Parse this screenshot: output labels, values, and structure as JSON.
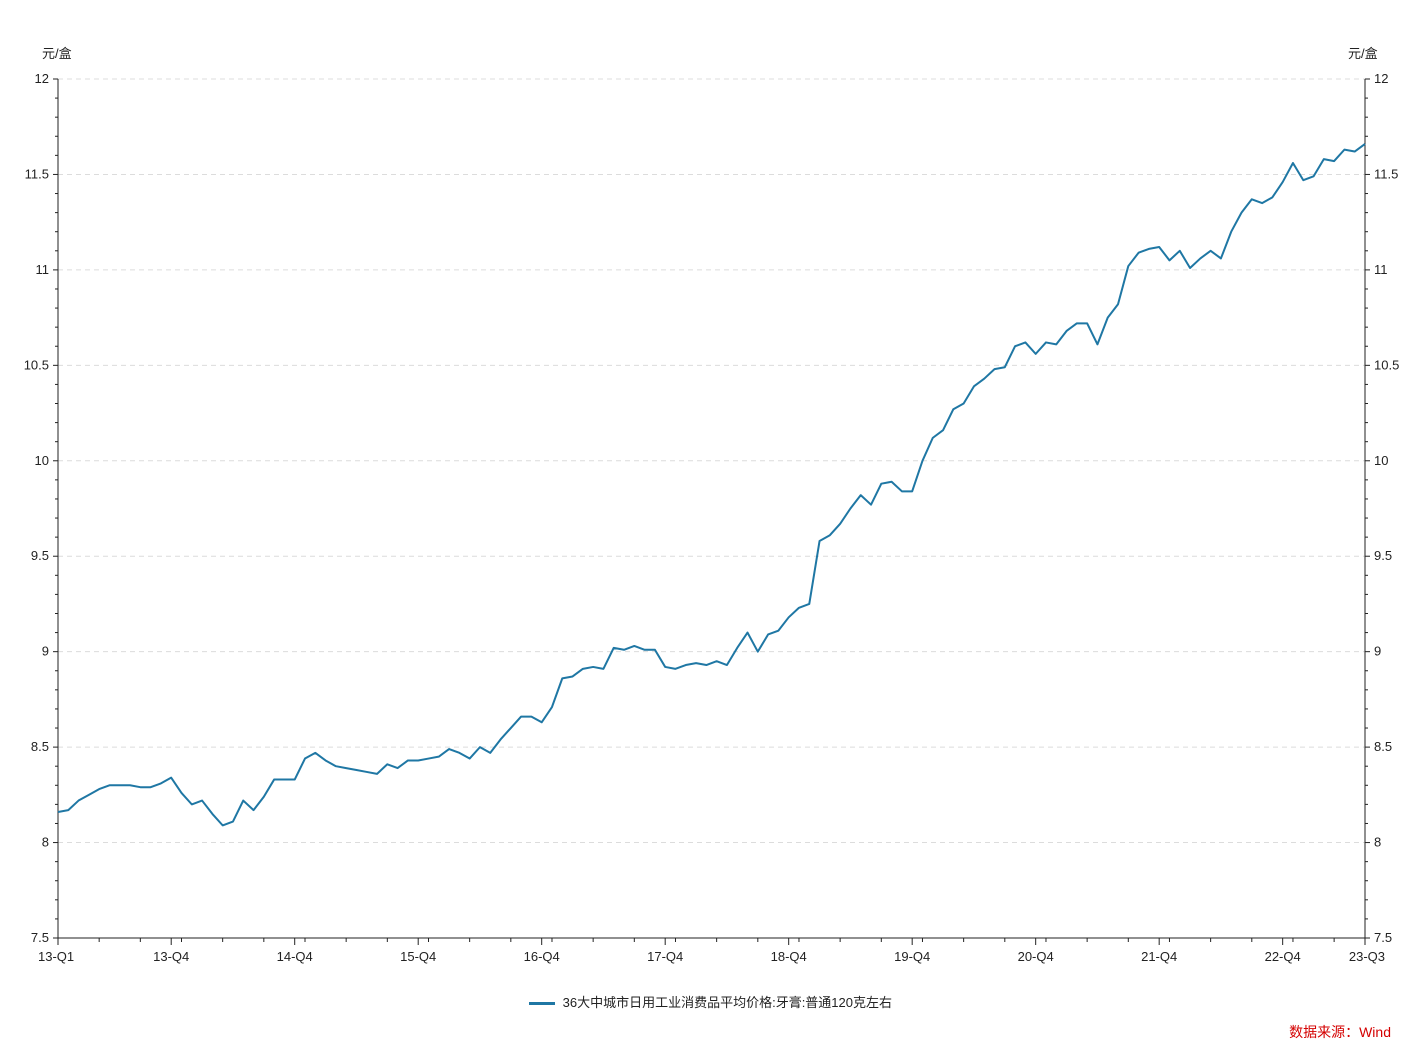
{
  "chart_data": {
    "type": "line",
    "left_unit": "元/盒",
    "right_unit": "元/盒",
    "ylim": [
      7.5,
      12
    ],
    "yticks": [
      "7.5",
      "8",
      "8.5",
      "9",
      "9.5",
      "10",
      "10.5",
      "11",
      "11.5",
      "12"
    ],
    "xtick_labels": [
      {
        "label": "13-Q1",
        "index": 0
      },
      {
        "label": "13-Q4",
        "index": 11
      },
      {
        "label": "14-Q4",
        "index": 23
      },
      {
        "label": "15-Q4",
        "index": 35
      },
      {
        "label": "16-Q4",
        "index": 47
      },
      {
        "label": "17-Q4",
        "index": 59
      },
      {
        "label": "18-Q4",
        "index": 71
      },
      {
        "label": "19-Q4",
        "index": 83
      },
      {
        "label": "20-Q4",
        "index": 95
      },
      {
        "label": "21-Q4",
        "index": 107
      },
      {
        "label": "22-Q4",
        "index": 119
      },
      {
        "label": "23-Q3",
        "index": 127
      }
    ],
    "grid": true,
    "legend_placement": "bottom-center",
    "series": [
      {
        "name": "36大中城市日用工业消费品平均价格:牙膏:普通120克左右",
        "color": "#1f77a4",
        "values": [
          8.16,
          8.17,
          8.22,
          8.25,
          8.28,
          8.3,
          8.3,
          8.3,
          8.29,
          8.29,
          8.31,
          8.34,
          8.26,
          8.2,
          8.22,
          8.15,
          8.09,
          8.11,
          8.22,
          8.17,
          8.24,
          8.33,
          8.33,
          8.33,
          8.44,
          8.47,
          8.43,
          8.4,
          8.39,
          8.38,
          8.37,
          8.36,
          8.41,
          8.39,
          8.43,
          8.43,
          8.44,
          8.45,
          8.49,
          8.47,
          8.44,
          8.5,
          8.47,
          8.54,
          8.6,
          8.66,
          8.66,
          8.63,
          8.71,
          8.86,
          8.87,
          8.91,
          8.92,
          8.91,
          9.02,
          9.01,
          9.03,
          9.01,
          9.01,
          8.92,
          8.91,
          8.93,
          8.94,
          8.93,
          8.95,
          8.93,
          9.02,
          9.1,
          9.0,
          9.09,
          9.11,
          9.18,
          9.23,
          9.25,
          9.58,
          9.61,
          9.67,
          9.75,
          9.82,
          9.77,
          9.88,
          9.89,
          9.84,
          9.84,
          10.0,
          10.12,
          10.16,
          10.27,
          10.3,
          10.39,
          10.43,
          10.48,
          10.49,
          10.6,
          10.62,
          10.56,
          10.62,
          10.61,
          10.68,
          10.72,
          10.72,
          10.61,
          10.75,
          10.82,
          11.02,
          11.09,
          11.11,
          11.12,
          11.05,
          11.1,
          11.01,
          11.06,
          11.1,
          11.06,
          11.2,
          11.3,
          11.37,
          11.35,
          11.38,
          11.46,
          11.56,
          11.47,
          11.49,
          11.58,
          11.57,
          11.63,
          11.62,
          11.66
        ]
      }
    ]
  },
  "legend_label": "36大中城市日用工业消费品平均价格:牙膏:普通120克左右",
  "source_text": "数据来源：Wind"
}
